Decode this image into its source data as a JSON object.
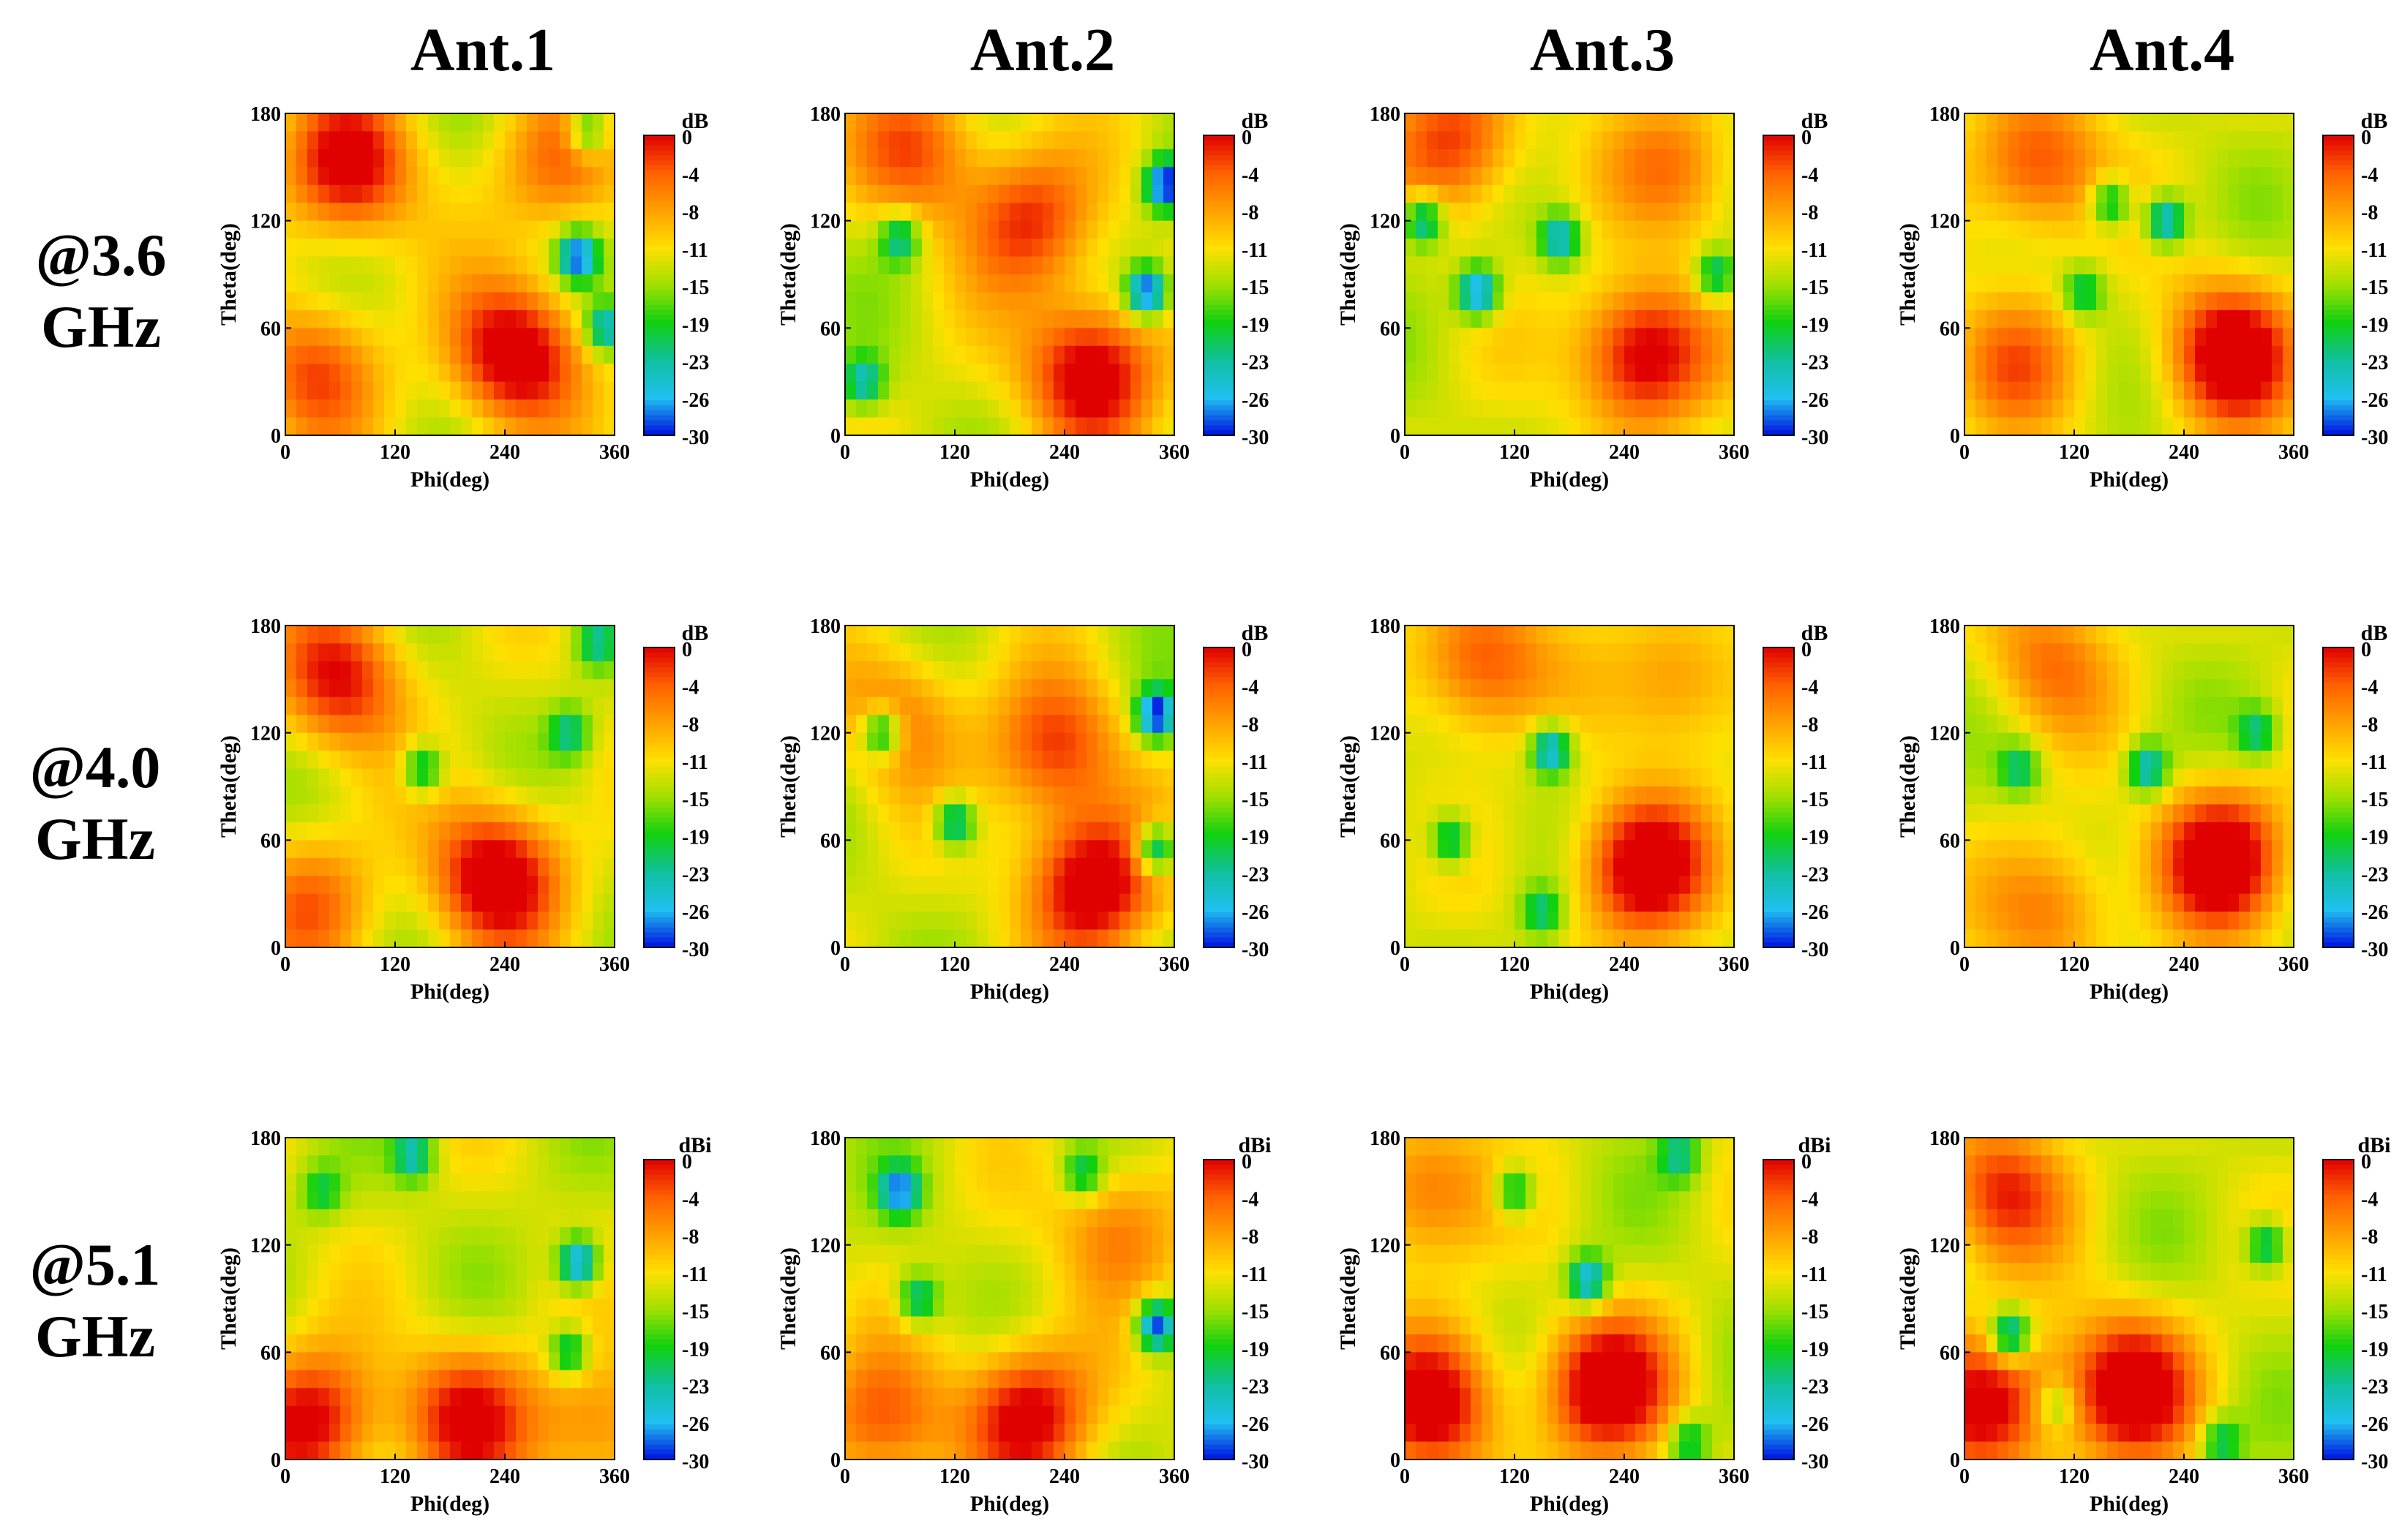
{
  "columns": [
    "Ant.1",
    "Ant.2",
    "Ant.3",
    "Ant.4"
  ],
  "rows": [
    {
      "label_line1": "@3.6",
      "label_line2": "GHz"
    },
    {
      "label_line1": "@4.0",
      "label_line2": "GHz"
    },
    {
      "label_line1": "@5.1",
      "label_line2": "GHz"
    }
  ],
  "chart_data": {
    "type": "heatmap",
    "xlabel": "Phi(deg)",
    "ylabel": "Theta(deg)",
    "xlim": [
      0,
      360
    ],
    "ylim": [
      0,
      180
    ],
    "xticks": [
      "0",
      "120",
      "240",
      "360"
    ],
    "yticks": [
      "0",
      "60",
      "120",
      "180"
    ],
    "colorbar": {
      "ticks": [
        "0",
        "-4",
        "-8",
        "-11",
        "-15",
        "-19",
        "-23",
        "-26",
        "-30"
      ],
      "range": [
        -30,
        0
      ],
      "colors": [
        "#e00000",
        "#ff6000",
        "#ffa000",
        "#ffe000",
        "#a0e000",
        "#10d010",
        "#10c0a0",
        "#20c0f0",
        "#0010e0"
      ]
    },
    "colorbar_units": [
      "dB",
      "dB",
      "dBi"
    ],
    "panels": [
      {
        "row": 0,
        "col": 0,
        "peaks": [
          [
            70,
            150,
            0.9
          ],
          [
            250,
            45,
            1.0
          ],
          [
            30,
            35,
            0.6
          ],
          [
            300,
            150,
            0.5
          ]
        ],
        "nulls": [
          [
            320,
            100,
            0.9
          ],
          [
            350,
            60,
            0.7
          ],
          [
            330,
            170,
            0.6
          ]
        ]
      },
      {
        "row": 0,
        "col": 1,
        "peaks": [
          [
            270,
            35,
            1.0
          ],
          [
            200,
            120,
            0.7
          ],
          [
            80,
            160,
            0.6
          ]
        ],
        "nulls": [
          [
            330,
            80,
            1.0
          ],
          [
            350,
            140,
            1.0
          ],
          [
            60,
            110,
            0.6
          ],
          [
            20,
            30,
            0.6
          ]
        ]
      },
      {
        "row": 0,
        "col": 2,
        "peaks": [
          [
            260,
            45,
            1.0
          ],
          [
            60,
            165,
            0.7
          ],
          [
            300,
            150,
            0.5
          ]
        ],
        "nulls": [
          [
            80,
            80,
            0.9
          ],
          [
            20,
            120,
            0.7
          ],
          [
            170,
            110,
            0.7
          ],
          [
            340,
            90,
            0.6
          ]
        ]
      },
      {
        "row": 0,
        "col": 3,
        "peaks": [
          [
            290,
            45,
            1.0
          ],
          [
            80,
            150,
            0.7
          ],
          [
            50,
            40,
            0.5
          ]
        ],
        "nulls": [
          [
            220,
            120,
            0.8
          ],
          [
            160,
            130,
            0.6
          ],
          [
            130,
            80,
            0.5
          ]
        ]
      },
      {
        "row": 1,
        "col": 0,
        "peaks": [
          [
            230,
            40,
            1.0
          ],
          [
            60,
            150,
            0.8
          ],
          [
            30,
            25,
            0.5
          ]
        ],
        "nulls": [
          [
            150,
            100,
            0.6
          ],
          [
            310,
            120,
            0.5
          ],
          [
            340,
            170,
            0.5
          ]
        ]
      },
      {
        "row": 1,
        "col": 1,
        "peaks": [
          [
            270,
            35,
            1.0
          ],
          [
            230,
            110,
            0.7
          ],
          [
            60,
            130,
            0.5
          ]
        ],
        "nulls": [
          [
            340,
            130,
            1.0
          ],
          [
            120,
            70,
            0.7
          ],
          [
            40,
            120,
            0.7
          ],
          [
            340,
            55,
            0.8
          ]
        ]
      },
      {
        "row": 1,
        "col": 2,
        "peaks": [
          [
            260,
            45,
            1.0
          ],
          [
            80,
            160,
            0.7
          ],
          [
            300,
            150,
            0.5
          ]
        ],
        "nulls": [
          [
            160,
            110,
            0.8
          ],
          [
            50,
            60,
            0.6
          ],
          [
            150,
            20,
            0.5
          ]
        ]
      },
      {
        "row": 1,
        "col": 3,
        "peaks": [
          [
            280,
            50,
            1.0
          ],
          [
            90,
            160,
            0.5
          ],
          [
            100,
            20,
            0.5
          ]
        ],
        "nulls": [
          [
            200,
            100,
            0.7
          ],
          [
            60,
            100,
            0.5
          ],
          [
            320,
            120,
            0.5
          ]
        ]
      },
      {
        "row": 2,
        "col": 0,
        "peaks": [
          [
            30,
            20,
            0.9
          ],
          [
            200,
            25,
            0.8
          ],
          [
            340,
            15,
            0.5
          ]
        ],
        "nulls": [
          [
            320,
            110,
            0.9
          ],
          [
            140,
            170,
            0.6
          ],
          [
            310,
            60,
            0.6
          ],
          [
            40,
            150,
            0.4
          ]
        ]
      },
      {
        "row": 2,
        "col": 1,
        "peaks": [
          [
            200,
            25,
            0.9
          ],
          [
            40,
            20,
            0.6
          ],
          [
            300,
            130,
            0.5
          ]
        ],
        "nulls": [
          [
            340,
            75,
            1.0
          ],
          [
            60,
            150,
            0.8
          ],
          [
            80,
            90,
            0.6
          ],
          [
            260,
            160,
            0.5
          ]
        ]
      },
      {
        "row": 2,
        "col": 2,
        "peaks": [
          [
            30,
            30,
            0.9
          ],
          [
            220,
            40,
            1.0
          ],
          [
            20,
            150,
            0.6
          ]
        ],
        "nulls": [
          [
            200,
            100,
            0.8
          ],
          [
            120,
            150,
            0.6
          ],
          [
            300,
            170,
            0.5
          ],
          [
            310,
            10,
            0.5
          ]
        ]
      },
      {
        "row": 2,
        "col": 3,
        "peaks": [
          [
            30,
            30,
            0.9
          ],
          [
            180,
            40,
            1.0
          ],
          [
            40,
            150,
            0.7
          ]
        ],
        "nulls": [
          [
            50,
            70,
            0.8
          ],
          [
            330,
            120,
            0.6
          ],
          [
            280,
            10,
            0.5
          ],
          [
            100,
            30,
            0.4
          ]
        ]
      }
    ]
  }
}
